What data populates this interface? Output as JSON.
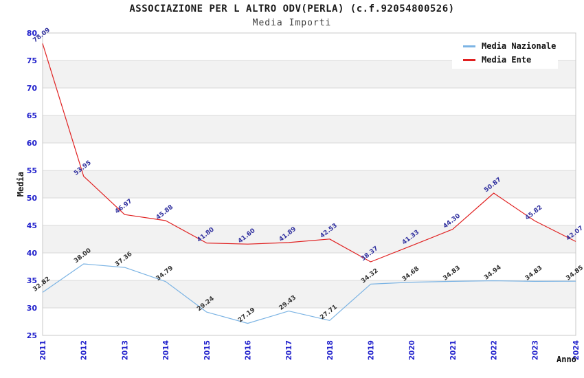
{
  "header": {
    "title": "ASSOCIAZIONE PER L ALTRO ODV(PERLA) (c.f.92054800526)",
    "subtitle": "Media Importi"
  },
  "chart_data": {
    "type": "line",
    "x": [
      2011,
      2012,
      2013,
      2014,
      2015,
      2016,
      2017,
      2018,
      2019,
      2020,
      2021,
      2022,
      2023,
      2024
    ],
    "series": [
      {
        "name": "Media Nazionale",
        "color": "#7cb4e4",
        "label_color": "#333333",
        "values": [
          32.82,
          38.0,
          37.36,
          34.79,
          29.24,
          27.19,
          29.43,
          27.71,
          34.32,
          34.68,
          34.83,
          34.94,
          34.83,
          34.85
        ]
      },
      {
        "name": "Media Ente",
        "color": "#e02020",
        "label_color": "#3333a0",
        "values": [
          78.09,
          53.95,
          46.97,
          45.88,
          41.8,
          41.6,
          41.89,
          42.53,
          38.37,
          41.33,
          44.3,
          50.87,
          45.82,
          42.07
        ]
      }
    ],
    "xlabel": "Anno",
    "ylabel": "Media",
    "ylim": [
      25,
      80
    ],
    "ytick_step": 5,
    "grid": "horizontal",
    "legend_position": "top-right",
    "band_colors": [
      "#ffffff",
      "#f2f2f2"
    ],
    "grid_color": "#d8d8d8",
    "border_color": "#c8c8c8",
    "tick_label_color": "#2222cc",
    "label_rotation_deg": -38,
    "xtick_rotation_deg": -90
  }
}
